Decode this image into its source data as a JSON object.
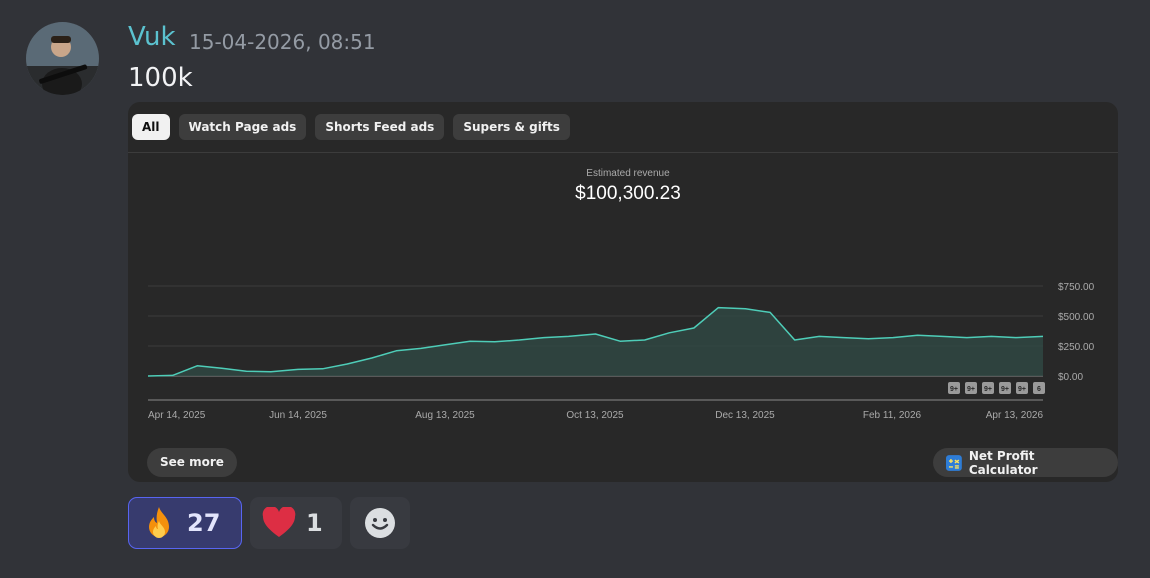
{
  "message": {
    "username": "Vuk",
    "timestamp": "15-04-2026, 08:51",
    "text": "100k",
    "username_color": "#5bc2cf"
  },
  "card": {
    "tabs": [
      {
        "label": "All",
        "active": true
      },
      {
        "label": "Watch Page ads",
        "active": false
      },
      {
        "label": "Shorts Feed ads",
        "active": false
      },
      {
        "label": "Supers & gifts",
        "active": false
      }
    ],
    "metric_label": "Estimated revenue",
    "metric_value": "$100,300.23",
    "see_more_label": "See more",
    "calculator_label": "Net Profit Calculator",
    "milestone_badges": [
      "9+",
      "9+",
      "9+",
      "9+",
      "9+",
      "6"
    ]
  },
  "chart_data": {
    "type": "area",
    "x_tick_labels": [
      "Apr 14, 2025",
      "Jun 14, 2025",
      "Aug 13, 2025",
      "Oct 13, 2025",
      "Dec 13, 2025",
      "Feb 11, 2026",
      "Apr 13, 2026"
    ],
    "y_tick_labels": [
      "$0.00",
      "$250.00",
      "$500.00",
      "$750.00"
    ],
    "ylim": [
      0,
      750
    ],
    "y_axis_position": "right",
    "grid": true,
    "line_color": "#4ecdb8",
    "series": [
      {
        "x": [
          "2025-04-14",
          "2025-04-24",
          "2025-05-04",
          "2025-05-14",
          "2025-05-24",
          "2025-06-03",
          "2025-06-14",
          "2025-06-24",
          "2025-07-04",
          "2025-07-14",
          "2025-07-24",
          "2025-08-03",
          "2025-08-13",
          "2025-08-23",
          "2025-09-02",
          "2025-09-12",
          "2025-09-22",
          "2025-10-02",
          "2025-10-13",
          "2025-10-23",
          "2025-11-02",
          "2025-11-12",
          "2025-11-22",
          "2025-12-02",
          "2025-12-13",
          "2025-12-23",
          "2026-01-02",
          "2026-01-12",
          "2026-01-22",
          "2026-02-01",
          "2026-02-11",
          "2026-02-21",
          "2026-03-03",
          "2026-03-13",
          "2026-03-23",
          "2026-04-02",
          "2026-04-13"
        ],
        "values": [
          0,
          5,
          85,
          65,
          40,
          35,
          55,
          60,
          100,
          150,
          210,
          230,
          260,
          290,
          285,
          300,
          320,
          330,
          350,
          290,
          300,
          360,
          400,
          570,
          560,
          530,
          300,
          330,
          320,
          310,
          320,
          340,
          330,
          320,
          330,
          320,
          330
        ]
      }
    ]
  },
  "reactions": [
    {
      "emoji": "fire-emoji",
      "count": "27",
      "active": true
    },
    {
      "emoji": "heart-emoji",
      "count": "1",
      "active": false
    },
    {
      "emoji": "add-reaction-icon",
      "count": "",
      "active": false
    }
  ]
}
